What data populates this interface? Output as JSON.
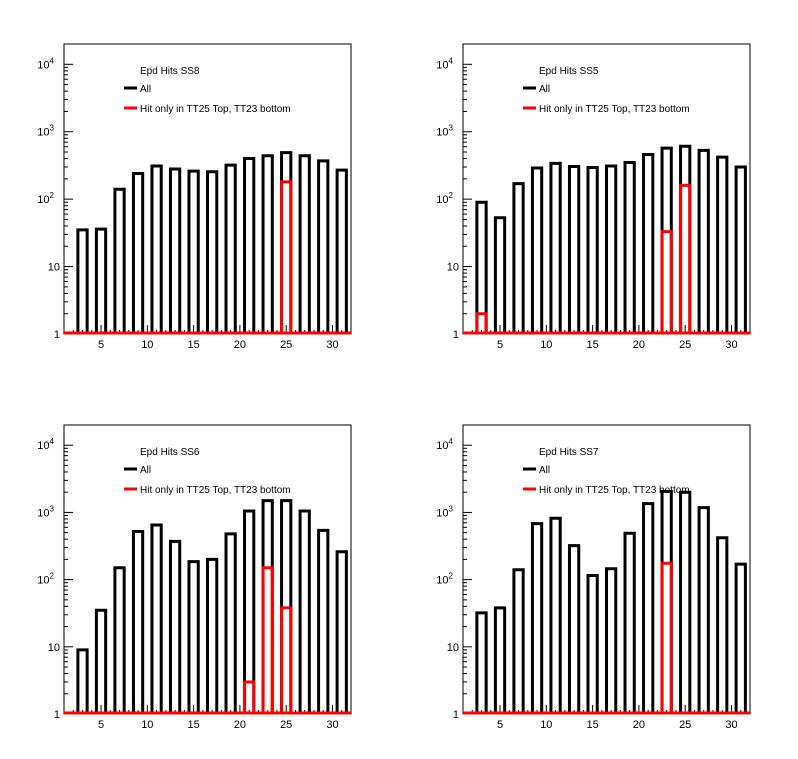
{
  "chart_data": [
    {
      "type": "bar",
      "title": "Epd Hits SS8",
      "x_ticks": [
        5,
        10,
        15,
        20,
        25,
        30
      ],
      "y_ticks": [
        {
          "value": 1,
          "label": "1",
          "exp": ""
        },
        {
          "value": 10,
          "label": "10",
          "exp": ""
        },
        {
          "value": 100,
          "label": "10",
          "exp": "2"
        },
        {
          "value": 1000,
          "label": "10",
          "exp": "3"
        },
        {
          "value": 10000,
          "label": "10",
          "exp": "4"
        }
      ],
      "xlim": [
        1,
        32
      ],
      "ylim": [
        1,
        20000
      ],
      "yscale": "log",
      "legend_position": "top-left",
      "series": [
        {
          "name": "All",
          "color": "#000000",
          "bins": [
            {
              "x": 3,
              "y": 35
            },
            {
              "x": 5,
              "y": 36
            },
            {
              "x": 7,
              "y": 140
            },
            {
              "x": 9,
              "y": 240
            },
            {
              "x": 11,
              "y": 310
            },
            {
              "x": 13,
              "y": 280
            },
            {
              "x": 15,
              "y": 260
            },
            {
              "x": 17,
              "y": 255
            },
            {
              "x": 19,
              "y": 320
            },
            {
              "x": 21,
              "y": 400
            },
            {
              "x": 23,
              "y": 440
            },
            {
              "x": 25,
              "y": 490
            },
            {
              "x": 27,
              "y": 440
            },
            {
              "x": 29,
              "y": 370
            },
            {
              "x": 31,
              "y": 270
            }
          ]
        },
        {
          "name": "Hit only in TT25 Top, TT23 bottom",
          "color": "#ff0000",
          "bins": [
            {
              "x": 25,
              "y": 180
            }
          ]
        }
      ]
    },
    {
      "type": "bar",
      "title": "Epd Hits SS5",
      "x_ticks": [
        5,
        10,
        15,
        20,
        25,
        30
      ],
      "y_ticks": [
        {
          "value": 1,
          "label": "1",
          "exp": ""
        },
        {
          "value": 10,
          "label": "10",
          "exp": ""
        },
        {
          "value": 100,
          "label": "10",
          "exp": "2"
        },
        {
          "value": 1000,
          "label": "10",
          "exp": "3"
        },
        {
          "value": 10000,
          "label": "10",
          "exp": "4"
        }
      ],
      "xlim": [
        1,
        32
      ],
      "ylim": [
        1,
        20000
      ],
      "yscale": "log",
      "legend_position": "top-left",
      "series": [
        {
          "name": "All",
          "color": "#000000",
          "bins": [
            {
              "x": 3,
              "y": 90
            },
            {
              "x": 5,
              "y": 53
            },
            {
              "x": 7,
              "y": 170
            },
            {
              "x": 9,
              "y": 290
            },
            {
              "x": 11,
              "y": 340
            },
            {
              "x": 13,
              "y": 305
            },
            {
              "x": 15,
              "y": 295
            },
            {
              "x": 17,
              "y": 310
            },
            {
              "x": 19,
              "y": 350
            },
            {
              "x": 21,
              "y": 460
            },
            {
              "x": 23,
              "y": 570
            },
            {
              "x": 25,
              "y": 610
            },
            {
              "x": 27,
              "y": 530
            },
            {
              "x": 29,
              "y": 420
            },
            {
              "x": 31,
              "y": 300
            }
          ]
        },
        {
          "name": "Hit only in TT25 Top, TT23 bottom",
          "color": "#ff0000",
          "bins": [
            {
              "x": 3,
              "y": 2
            },
            {
              "x": 23,
              "y": 33
            },
            {
              "x": 25,
              "y": 160
            }
          ]
        }
      ]
    },
    {
      "type": "bar",
      "title": "Epd Hits SS6",
      "x_ticks": [
        5,
        10,
        15,
        20,
        25,
        30
      ],
      "y_ticks": [
        {
          "value": 1,
          "label": "1",
          "exp": ""
        },
        {
          "value": 10,
          "label": "10",
          "exp": ""
        },
        {
          "value": 100,
          "label": "10",
          "exp": "2"
        },
        {
          "value": 1000,
          "label": "10",
          "exp": "3"
        },
        {
          "value": 10000,
          "label": "10",
          "exp": "4"
        }
      ],
      "xlim": [
        1,
        32
      ],
      "ylim": [
        1,
        20000
      ],
      "yscale": "log",
      "legend_position": "top-left",
      "series": [
        {
          "name": "All",
          "color": "#000000",
          "bins": [
            {
              "x": 3,
              "y": 9
            },
            {
              "x": 5,
              "y": 35
            },
            {
              "x": 7,
              "y": 150
            },
            {
              "x": 9,
              "y": 520
            },
            {
              "x": 11,
              "y": 650
            },
            {
              "x": 13,
              "y": 370
            },
            {
              "x": 15,
              "y": 185
            },
            {
              "x": 17,
              "y": 200
            },
            {
              "x": 19,
              "y": 480
            },
            {
              "x": 21,
              "y": 1050
            },
            {
              "x": 23,
              "y": 1500
            },
            {
              "x": 25,
              "y": 1500
            },
            {
              "x": 27,
              "y": 1050
            },
            {
              "x": 29,
              "y": 540
            },
            {
              "x": 31,
              "y": 260
            }
          ]
        },
        {
          "name": "Hit only in TT25 Top, TT23 bottom",
          "color": "#ff0000",
          "bins": [
            {
              "x": 21,
              "y": 3
            },
            {
              "x": 23,
              "y": 150
            },
            {
              "x": 25,
              "y": 38
            }
          ]
        }
      ]
    },
    {
      "type": "bar",
      "title": "Epd Hits SS7",
      "x_ticks": [
        5,
        10,
        15,
        20,
        25,
        30
      ],
      "y_ticks": [
        {
          "value": 1,
          "label": "1",
          "exp": ""
        },
        {
          "value": 10,
          "label": "10",
          "exp": ""
        },
        {
          "value": 100,
          "label": "10",
          "exp": "2"
        },
        {
          "value": 1000,
          "label": "10",
          "exp": "3"
        },
        {
          "value": 10000,
          "label": "10",
          "exp": "4"
        }
      ],
      "xlim": [
        1,
        32
      ],
      "ylim": [
        1,
        20000
      ],
      "yscale": "log",
      "legend_position": "top-left",
      "series": [
        {
          "name": "All",
          "color": "#000000",
          "bins": [
            {
              "x": 3,
              "y": 32
            },
            {
              "x": 5,
              "y": 38
            },
            {
              "x": 7,
              "y": 140
            },
            {
              "x": 9,
              "y": 680
            },
            {
              "x": 11,
              "y": 820
            },
            {
              "x": 13,
              "y": 320
            },
            {
              "x": 15,
              "y": 115
            },
            {
              "x": 17,
              "y": 145
            },
            {
              "x": 19,
              "y": 490
            },
            {
              "x": 21,
              "y": 1350
            },
            {
              "x": 23,
              "y": 2050
            },
            {
              "x": 25,
              "y": 2000
            },
            {
              "x": 27,
              "y": 1180
            },
            {
              "x": 29,
              "y": 420
            },
            {
              "x": 31,
              "y": 170
            }
          ]
        },
        {
          "name": "Hit only in TT25 Top, TT23 bottom",
          "color": "#ff0000",
          "bins": [
            {
              "x": 23,
              "y": 175
            }
          ]
        }
      ]
    }
  ]
}
